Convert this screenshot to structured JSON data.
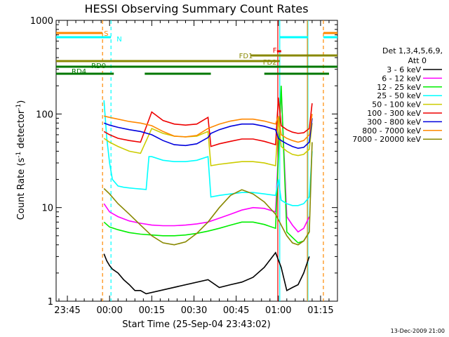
{
  "chart_data": {
    "type": "line",
    "title": "HESSI Observing Summary Count Rates",
    "xlabel": "Start Time (25-Sep-04 23:43:02)",
    "ylabel_prefix": "Count Rate (s",
    "ylabel_sup1": "-1",
    "ylabel_mid": " detector",
    "ylabel_sup2": "-1",
    "ylabel_suffix": ")",
    "ylim": [
      1,
      1000
    ],
    "yscale": "log",
    "x_unit": "minutes since 23:43:02",
    "xlim": [
      -2,
      98
    ],
    "x_ticks": [
      {
        "x": 2,
        "label": "23:45"
      },
      {
        "x": 17,
        "label": "00:00"
      },
      {
        "x": 32,
        "label": "00:15"
      },
      {
        "x": 47,
        "label": "00:30"
      },
      {
        "x": 62,
        "label": "00:45"
      },
      {
        "x": 77,
        "label": "01:00"
      },
      {
        "x": 92,
        "label": "01:15"
      }
    ],
    "y_ticks": [
      {
        "y": 1,
        "label": "1"
      },
      {
        "y": 10,
        "label": "10"
      },
      {
        "y": 100,
        "label": "100"
      },
      {
        "y": 1000,
        "label": "1000"
      }
    ],
    "legend": {
      "position": "right",
      "header1": "Det 1,3,4,5,6,9,",
      "header2": "Att 0",
      "entries": [
        {
          "label": "3 - 6 keV",
          "color": "#000000"
        },
        {
          "label": "6 - 12 keV",
          "color": "#ff00ff"
        },
        {
          "label": "12 - 25 keV",
          "color": "#00ee00"
        },
        {
          "label": "25 - 50 keV",
          "color": "#00ffff"
        },
        {
          "label": "50 - 100 keV",
          "color": "#cccc00"
        },
        {
          "label": "100 - 300 keV",
          "color": "#ee0000"
        },
        {
          "label": "300 - 800 keV",
          "color": "#0000dd"
        },
        {
          "label": "800 - 7000 keV",
          "color": "#ff8800"
        },
        {
          "label": "7000 - 20000 keV",
          "color": "#888800"
        }
      ]
    },
    "flag_bars": [
      {
        "label": "S",
        "color": "#ff8800",
        "segments": [
          [
            -2,
            14.5
          ],
          [
            93,
            98
          ]
        ],
        "y_level": 0.955
      },
      {
        "label": "N",
        "color": "#00ffff",
        "segments": [
          [
            -2,
            17.5
          ],
          [
            77.5,
            87.5
          ],
          [
            93,
            98
          ]
        ],
        "y_level": 0.94
      },
      {
        "label": "F",
        "color": "#ee0000",
        "segments": [
          [
            76.5,
            78
          ]
        ],
        "y_level": 0.89
      },
      {
        "label": "FD1",
        "color": "#888800",
        "segments": [
          [
            67,
            98
          ]
        ],
        "y_level": 0.875
      },
      {
        "label": "FD2",
        "color": "#888800",
        "segments": [
          [
            -2,
            77.5
          ]
        ],
        "y_level": 0.855
      },
      {
        "label": "RD0",
        "color": "#007700",
        "segments": [
          [
            -2,
            98
          ]
        ],
        "y_level": 0.835
      },
      {
        "label": "RD4",
        "color": "#007700",
        "segments": [
          [
            -2,
            18.5
          ],
          [
            29.5,
            53
          ],
          [
            72,
            95
          ]
        ],
        "y_level": 0.81
      }
    ],
    "series": [
      {
        "name": "3 - 6 keV",
        "color": "#000000",
        "x": [
          15,
          16,
          17,
          18,
          20,
          22,
          24,
          26,
          28,
          30,
          52,
          56,
          60,
          64,
          68,
          72,
          76,
          78,
          80,
          82,
          84,
          86,
          88
        ],
        "y": [
          3.2,
          2.7,
          2.4,
          2.2,
          2.0,
          1.7,
          1.5,
          1.3,
          1.3,
          1.2,
          1.7,
          1.4,
          1.5,
          1.6,
          1.8,
          2.3,
          3.3,
          2.3,
          1.3,
          1.4,
          1.5,
          2.0,
          3.0
        ]
      },
      {
        "name": "6 - 12 keV",
        "color": "#ff00ff",
        "x": [
          15,
          17,
          20,
          24,
          28,
          32,
          36,
          40,
          44,
          48,
          52,
          56,
          60,
          64,
          68,
          72,
          76,
          78,
          80,
          82,
          84,
          86,
          88
        ],
        "y": [
          11,
          9.0,
          8.0,
          7.2,
          6.8,
          6.5,
          6.4,
          6.4,
          6.5,
          6.7,
          7.0,
          7.7,
          8.5,
          9.4,
          10.0,
          9.8,
          9.0,
          180,
          8.0,
          6.5,
          5.5,
          6.0,
          8.0
        ]
      },
      {
        "name": "12 - 25 keV",
        "color": "#00ee00",
        "x": [
          15,
          17,
          20,
          24,
          28,
          32,
          36,
          40,
          44,
          48,
          52,
          56,
          60,
          64,
          68,
          72,
          76,
          78,
          80,
          82,
          84,
          86,
          88
        ],
        "y": [
          7.0,
          6.2,
          5.8,
          5.4,
          5.2,
          5.1,
          5.0,
          5.0,
          5.1,
          5.3,
          5.6,
          6.0,
          6.5,
          7.0,
          7.0,
          6.6,
          6.0,
          200,
          5.5,
          4.8,
          4.2,
          4.4,
          5.5
        ]
      },
      {
        "name": "25 - 50 keV",
        "color": "#00ffff",
        "x": [
          15,
          16,
          17,
          18,
          20,
          22,
          24,
          26,
          28,
          30,
          31,
          32,
          36,
          40,
          44,
          48,
          52,
          53,
          56,
          60,
          64,
          68,
          72,
          76,
          77,
          78,
          80,
          82,
          84,
          86,
          88,
          89
        ],
        "y": [
          140,
          55,
          30,
          20,
          17,
          16.5,
          16.2,
          16.0,
          15.8,
          15.6,
          35,
          35,
          32,
          31,
          31,
          32,
          35,
          13,
          13.5,
          14,
          14.5,
          14.5,
          14,
          13.5,
          20,
          12,
          11,
          10.5,
          10.5,
          11,
          13,
          40
        ]
      },
      {
        "name": "50 - 100 keV",
        "color": "#cccc00",
        "x": [
          15,
          17,
          20,
          24,
          28,
          32,
          36,
          40,
          44,
          48,
          52,
          53,
          56,
          60,
          64,
          68,
          72,
          76,
          77,
          78,
          80,
          82,
          84,
          86,
          88,
          89
        ],
        "y": [
          55,
          50,
          45,
          40,
          38,
          70,
          62,
          58,
          57,
          58,
          65,
          28,
          29,
          30,
          31,
          31,
          30,
          28,
          90,
          45,
          40,
          37,
          36,
          37,
          42,
          80
        ]
      },
      {
        "name": "100 - 300 keV",
        "color": "#ee0000",
        "x": [
          15,
          17,
          20,
          24,
          28,
          32,
          36,
          40,
          44,
          48,
          52,
          53,
          56,
          60,
          64,
          68,
          72,
          76,
          77,
          78,
          80,
          82,
          84,
          86,
          88,
          89
        ],
        "y": [
          65,
          60,
          55,
          52,
          50,
          105,
          85,
          78,
          76,
          78,
          92,
          45,
          48,
          51,
          54,
          54,
          51,
          47,
          150,
          75,
          68,
          64,
          62,
          63,
          70,
          130
        ]
      },
      {
        "name": "300 - 800 keV",
        "color": "#0000dd",
        "x": [
          15,
          17,
          20,
          24,
          28,
          32,
          36,
          40,
          44,
          48,
          52,
          53,
          56,
          60,
          64,
          68,
          72,
          76,
          77,
          78,
          80,
          82,
          84,
          86,
          88,
          89
        ],
        "y": [
          80,
          76,
          72,
          68,
          65,
          60,
          52,
          47,
          46,
          48,
          56,
          62,
          68,
          74,
          78,
          78,
          74,
          68,
          55,
          52,
          48,
          45,
          43,
          44,
          50,
          90
        ]
      },
      {
        "name": "800 - 7000 keV",
        "color": "#ff8800",
        "x": [
          15,
          17,
          20,
          24,
          28,
          32,
          36,
          40,
          44,
          48,
          52,
          53,
          56,
          60,
          64,
          68,
          72,
          76,
          77,
          78,
          80,
          82,
          84,
          86,
          88,
          89
        ],
        "y": [
          95,
          92,
          88,
          83,
          80,
          75,
          65,
          58,
          57,
          59,
          70,
          72,
          78,
          84,
          88,
          88,
          84,
          78,
          95,
          60,
          55,
          52,
          50,
          52,
          60,
          100
        ]
      },
      {
        "name": "7000 - 20000 keV",
        "color": "#888800",
        "x": [
          15,
          17,
          20,
          24,
          28,
          32,
          36,
          40,
          44,
          48,
          52,
          56,
          60,
          64,
          68,
          72,
          76,
          78,
          80,
          82,
          84,
          86,
          88,
          89
        ],
        "y": [
          16,
          14,
          11,
          8.5,
          6.5,
          5.0,
          4.2,
          4.0,
          4.3,
          5.3,
          7.0,
          10,
          13.5,
          15.5,
          14,
          11.5,
          8.5,
          6.5,
          5.0,
          4.2,
          4.0,
          4.4,
          5.5,
          50
        ]
      }
    ],
    "vertical_markers": [
      {
        "x": 14.5,
        "color": "#ff8800",
        "style": "dashed"
      },
      {
        "x": 17.5,
        "color": "#00ffff",
        "style": "dashed"
      },
      {
        "x": 76.8,
        "color": "#ee0000",
        "style": "solid"
      },
      {
        "x": 77.5,
        "color": "#00ffff",
        "style": "solid"
      },
      {
        "x": 87.5,
        "color": "#00ffff",
        "style": "solid"
      },
      {
        "x": 87.3,
        "color": "#ff8800",
        "style": "solid"
      },
      {
        "x": 93,
        "color": "#ff8800",
        "style": "dashed"
      }
    ],
    "footer": "13-Dec-2009 21:00"
  }
}
